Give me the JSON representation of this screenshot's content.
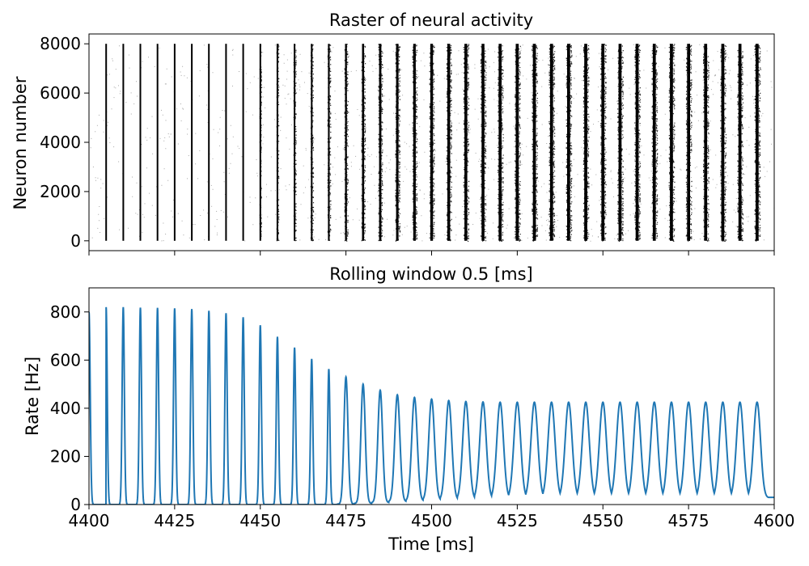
{
  "chart_data": [
    {
      "type": "scatter",
      "title": "Raster of neural activity",
      "xlabel": "",
      "ylabel": "Neuron number",
      "xlim": [
        4400,
        4600
      ],
      "ylim": [
        -400,
        8400
      ],
      "x_ticks": [
        4400,
        4425,
        4450,
        4475,
        4500,
        4525,
        4550,
        4575,
        4600
      ],
      "x_tick_labels_shown": false,
      "y_ticks": [
        0,
        2000,
        4000,
        6000,
        8000
      ],
      "y_tick_labels": [
        "0",
        "2000",
        "4000",
        "6000",
        "8000"
      ],
      "neuron_range": [
        0,
        8000
      ],
      "burst_period_ms": 5,
      "burst_times_ms": [
        4405,
        4410,
        4415,
        4420,
        4425,
        4430,
        4435,
        4440,
        4445,
        4450,
        4455,
        4460,
        4465,
        4470,
        4475,
        4480,
        4485,
        4490,
        4495,
        4500,
        4505,
        4510,
        4515,
        4520,
        4525,
        4530,
        4535,
        4540,
        4545,
        4550,
        4555,
        4560,
        4565,
        4570,
        4575,
        4580,
        4585,
        4590,
        4595
      ],
      "burst_width_ms": [
        0.3,
        0.3,
        0.3,
        0.3,
        0.35,
        0.35,
        0.4,
        0.4,
        0.45,
        0.5,
        0.6,
        0.7,
        0.8,
        0.9,
        1.0,
        1.1,
        1.2,
        1.3,
        1.35,
        1.4,
        1.45,
        1.5,
        1.5,
        1.55,
        1.6,
        1.6,
        1.6,
        1.6,
        1.6,
        1.6,
        1.6,
        1.6,
        1.6,
        1.6,
        1.6,
        1.6,
        1.6,
        1.6,
        1.6
      ],
      "marker_color": "#000000"
    },
    {
      "type": "line",
      "title": "Rolling window 0.5 [ms]",
      "xlabel": "Time [ms]",
      "ylabel": "Rate [Hz]",
      "xlim": [
        4400,
        4600
      ],
      "ylim": [
        0,
        900
      ],
      "x_ticks": [
        4400,
        4425,
        4450,
        4475,
        4500,
        4525,
        4550,
        4575,
        4600
      ],
      "x_tick_labels": [
        "4400",
        "4425",
        "4450",
        "4475",
        "4500",
        "4525",
        "4550",
        "4575",
        "4600"
      ],
      "y_ticks": [
        0,
        200,
        400,
        600,
        800
      ],
      "y_tick_labels": [
        "0",
        "200",
        "400",
        "600",
        "800"
      ],
      "line_color": "#1f77b4",
      "peak_times_ms": [
        4405,
        4410,
        4415,
        4420,
        4425,
        4430,
        4435,
        4440,
        4445,
        4450,
        4455,
        4460,
        4465,
        4470,
        4475,
        4480,
        4485,
        4490,
        4495,
        4500,
        4505,
        4510,
        4515,
        4520,
        4525,
        4530,
        4535,
        4540,
        4545,
        4550,
        4555,
        4560,
        4565,
        4570,
        4575,
        4580,
        4585,
        4590,
        4595
      ],
      "peak_values": [
        820,
        820,
        818,
        817,
        815,
        812,
        805,
        795,
        778,
        745,
        697,
        652,
        605,
        563,
        530,
        500,
        475,
        456,
        445,
        438,
        432,
        428,
        426,
        425,
        425,
        425,
        425,
        425,
        425,
        425,
        425,
        425,
        425,
        425,
        425,
        425,
        425,
        425,
        425
      ],
      "trough_values": [
        0,
        0,
        0,
        0,
        0,
        0,
        0,
        0,
        0,
        0,
        0,
        0,
        0,
        0,
        2,
        5,
        8,
        12,
        15,
        18,
        20,
        22,
        24,
        25,
        26,
        27,
        28,
        28,
        28,
        28,
        28,
        28,
        28,
        28,
        28,
        28,
        28,
        28,
        28
      ],
      "start_value": 800,
      "end_value": 30
    }
  ]
}
